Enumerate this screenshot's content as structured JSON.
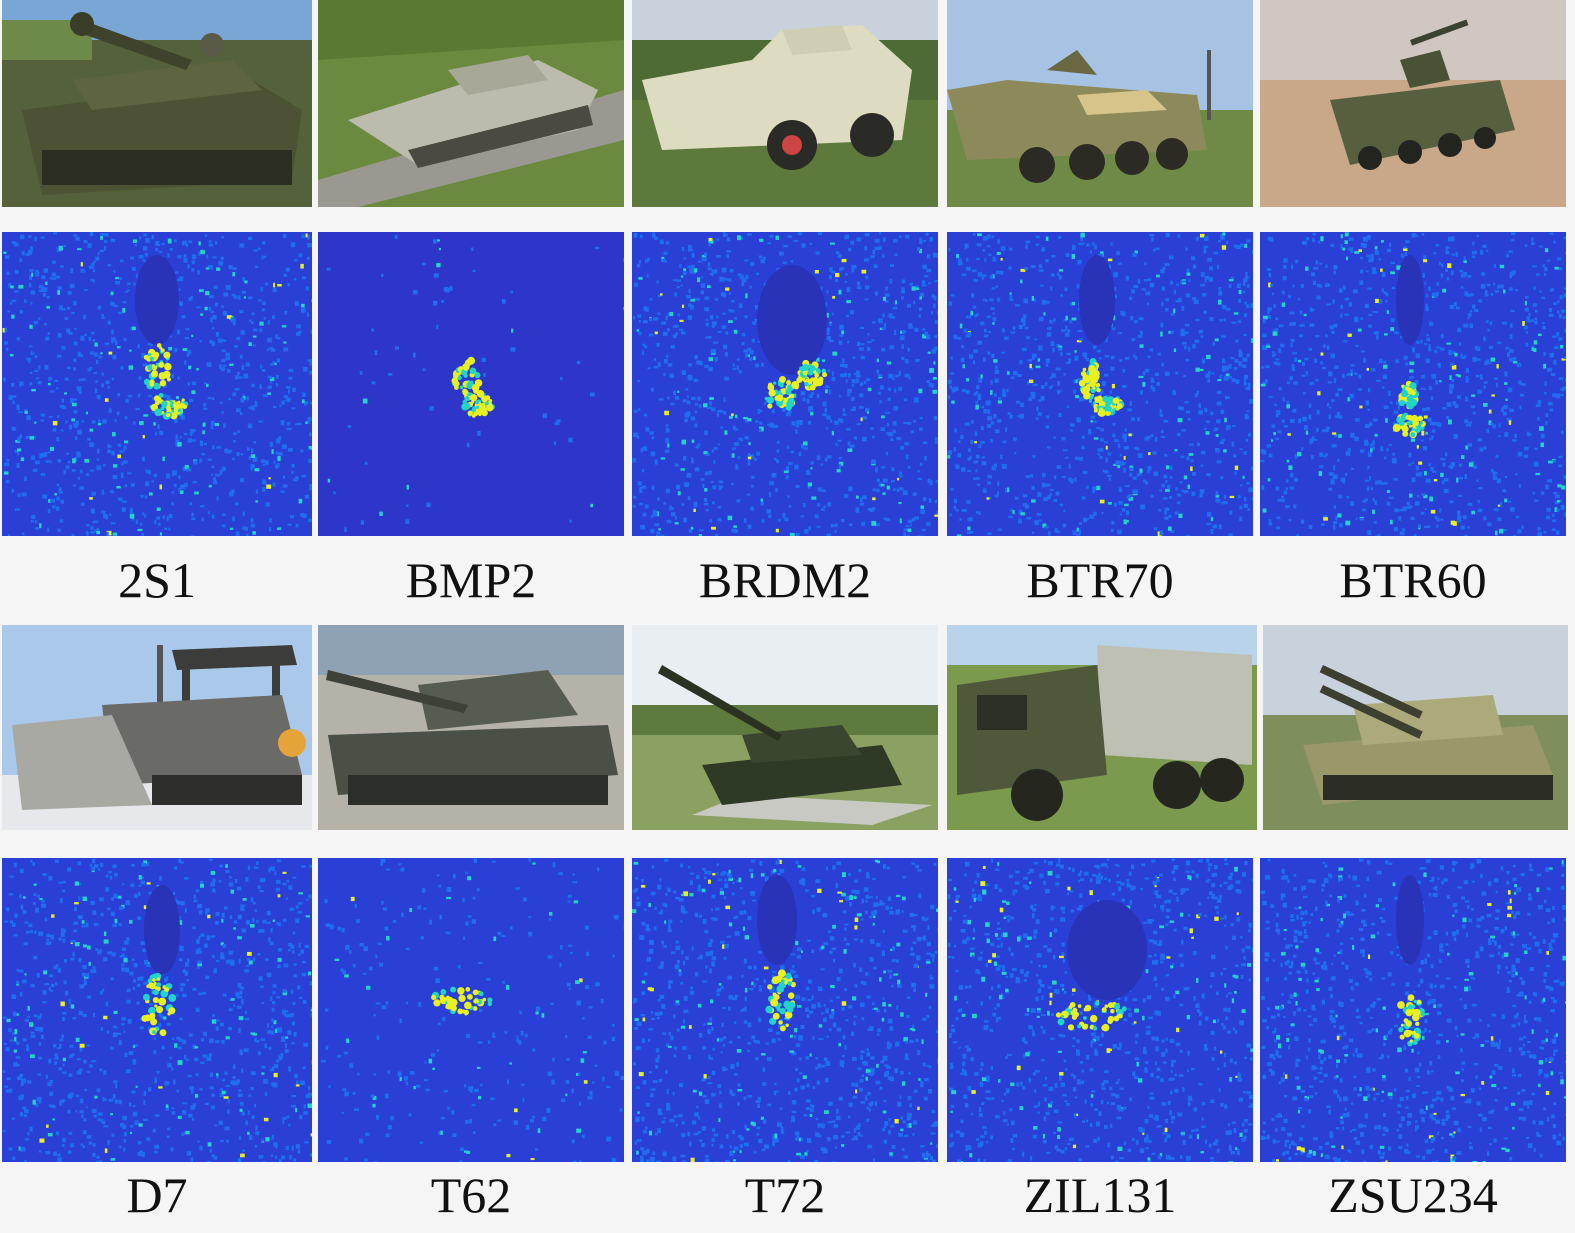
{
  "rows": [
    {
      "labels": [
        "2S1",
        "BMP2",
        "BRDM2",
        "BTR70",
        "BTR60"
      ]
    },
    {
      "labels": [
        "D7",
        "T62",
        "T72",
        "ZIL131",
        "ZSU234"
      ]
    }
  ],
  "colors": {
    "sar_background": "#2a3fd6",
    "sar_speckle": "#1f6df0",
    "sar_hot": "#e8f020",
    "sar_warm": "#22d4c8",
    "sar_shadow": "#2833b8",
    "sky": "#8fb8e0",
    "grass": "#5f7a3a",
    "olive_vehicle": "#5a5e3c",
    "pale_vehicle": "#d9d8b8",
    "dirt": "#c7a98a",
    "gravel": "#a8a59c"
  },
  "icons": [
    "optical-photo",
    "sar-heatmap"
  ]
}
